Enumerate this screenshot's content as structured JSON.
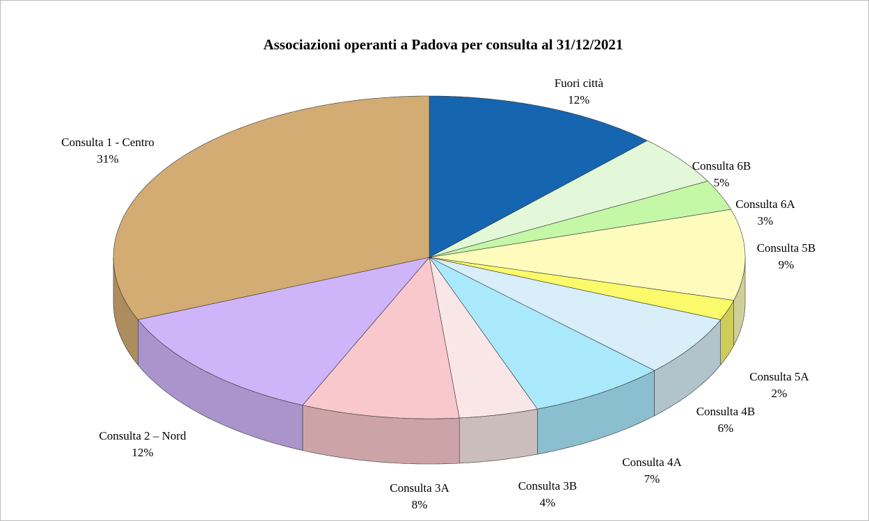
{
  "chart_data": {
    "type": "pie",
    "title": "Associazioni operanti a Padova per consulta al 31/12/2021",
    "categories": [
      "Fuori città",
      "Consulta 6B",
      "Consulta 6A",
      "Consulta 5B",
      "Consulta 5A",
      "Consulta 4B",
      "Consulta 4A",
      "Consulta 3B",
      "Consulta 3A",
      "Consulta 2 – Nord",
      "Consulta 1 - Centro"
    ],
    "values": [
      12,
      5,
      3,
      9,
      2,
      6,
      7,
      4,
      8,
      12,
      31
    ],
    "value_labels": [
      "12%",
      "5%",
      "3%",
      "9%",
      "2%",
      "6%",
      "7%",
      "4%",
      "8%",
      "12%",
      "31%"
    ],
    "colors": [
      "#1565b0",
      "#e2f8d8",
      "#c4f7a6",
      "#fdfcbc",
      "#fafa6a",
      "#d8eef8",
      "#aae8fb",
      "#f9e6e6",
      "#f9c8cc",
      "#ceb4f8",
      "#d3ac73"
    ]
  }
}
